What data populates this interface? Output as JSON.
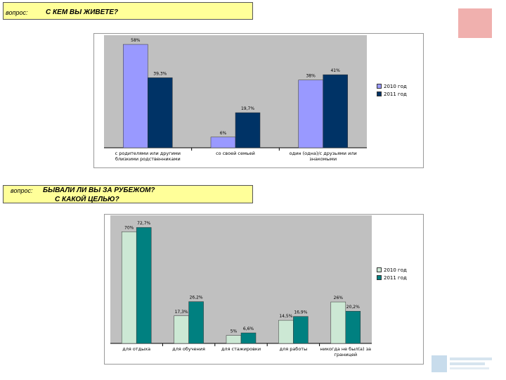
{
  "questions": [
    {
      "label": "вопрос:",
      "text": "С КЕМ ВЫ ЖИВЕТЕ?"
    },
    {
      "label": "вопрос:",
      "text_line1": "БЫВАЛИ ЛИ ВЫ ЗА РУБЕЖОМ?",
      "text_line2": "С КАКОЙ ЦЕЛЬЮ?"
    }
  ],
  "colors": {
    "chart1_2010": "#9999ff",
    "chart1_2011": "#003366",
    "chart2_2010": "#cce8d4",
    "chart2_2011": "#008080",
    "question_box": "#ffff99",
    "plot_area": "#c0c0c0"
  },
  "chart_data": [
    {
      "type": "bar",
      "categories": [
        "с родителями или другими близкими родственниками",
        "со своей семьей",
        "один (одна)/с друзьями или знакомыми"
      ],
      "series": [
        {
          "name": "2010 год",
          "values": [
            58,
            6,
            38
          ],
          "labels": [
            "58%",
            "6%",
            "38%"
          ]
        },
        {
          "name": "2011 год",
          "values": [
            39.3,
            19.7,
            41
          ],
          "labels": [
            "39,3%",
            "19,7%",
            "41%"
          ]
        }
      ],
      "ylim": [
        0,
        60
      ],
      "legend": "right"
    },
    {
      "type": "bar",
      "categories": [
        "для отдыха",
        "для обучения",
        "для стажировки",
        "для работы",
        "никогда не был(а) за границей"
      ],
      "series": [
        {
          "name": "2010 год",
          "values": [
            70,
            17.3,
            5,
            14.5,
            26
          ],
          "labels": [
            "70%",
            "17,3%",
            "5%",
            "14,5%",
            "26%"
          ]
        },
        {
          "name": "2011 год",
          "values": [
            72.7,
            26.2,
            6.6,
            16.9,
            20.2
          ],
          "labels": [
            "72,7%",
            "26,2%",
            "6,6%",
            "16,9%",
            "20,2%"
          ]
        }
      ],
      "ylim": [
        0,
        75
      ],
      "legend": "right"
    }
  ]
}
